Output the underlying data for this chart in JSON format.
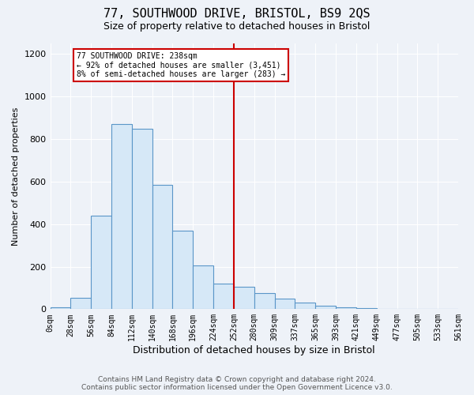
{
  "title1": "77, SOUTHWOOD DRIVE, BRISTOL, BS9 2QS",
  "title2": "Size of property relative to detached houses in Bristol",
  "xlabel": "Distribution of detached houses by size in Bristol",
  "ylabel": "Number of detached properties",
  "bin_labels": [
    "0sqm",
    "28sqm",
    "56sqm",
    "84sqm",
    "112sqm",
    "140sqm",
    "168sqm",
    "196sqm",
    "224sqm",
    "252sqm",
    "280sqm",
    "309sqm",
    "337sqm",
    "365sqm",
    "393sqm",
    "421sqm",
    "449sqm",
    "477sqm",
    "505sqm",
    "533sqm",
    "561sqm"
  ],
  "bar_values": [
    10,
    55,
    440,
    870,
    850,
    585,
    370,
    205,
    120,
    105,
    75,
    50,
    30,
    15,
    10,
    5,
    2,
    1,
    1,
    1
  ],
  "bar_color": "#d6e8f7",
  "bar_edge_color": "#5a96c8",
  "vline_color": "#cc0000",
  "annotation_title": "77 SOUTHWOOD DRIVE: 238sqm",
  "annotation_line2": "← 92% of detached houses are smaller (3,451)",
  "annotation_line3": "8% of semi-detached houses are larger (283) →",
  "annotation_box_color": "#ffffff",
  "annotation_border_color": "#cc0000",
  "footer1": "Contains HM Land Registry data © Crown copyright and database right 2024.",
  "footer2": "Contains public sector information licensed under the Open Government Licence v3.0.",
  "ylim": [
    0,
    1250
  ],
  "yticks": [
    0,
    200,
    400,
    600,
    800,
    1000,
    1200
  ],
  "background_color": "#eef2f8",
  "grid_color": "#ffffff",
  "title1_fontsize": 11,
  "title2_fontsize": 9,
  "xlabel_fontsize": 9,
  "ylabel_fontsize": 8,
  "tick_fontsize": 7,
  "footer_fontsize": 6.5
}
